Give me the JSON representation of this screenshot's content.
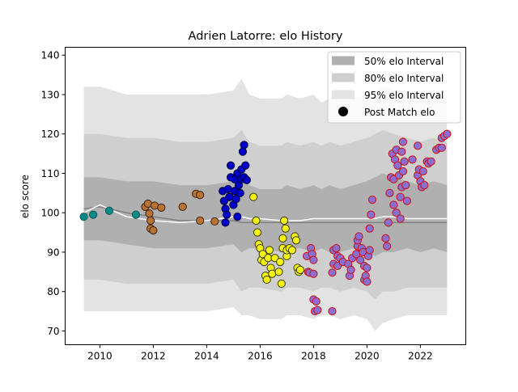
{
  "chart_data": {
    "type": "scatter",
    "title": "Adrien Latorre: elo History",
    "xlabel": "",
    "ylabel": "elo score",
    "xlim": [
      2008.7,
      2023.7
    ],
    "ylim": [
      66.5,
      142
    ],
    "x_ticks": [
      2010,
      2012,
      2014,
      2016,
      2018,
      2020,
      2022
    ],
    "y_ticks": [
      70,
      80,
      90,
      100,
      110,
      120,
      130,
      140
    ],
    "grid": false,
    "legend": {
      "placement": "top-right",
      "entries": [
        "50% elo Interval",
        "80% elo Interval",
        "95% elo Interval",
        "Post Match elo"
      ]
    },
    "colors": {
      "band50": "#b0b0b0",
      "band80": "#cfcfcf",
      "band95": "#e3e3e3",
      "median_line": "#808080",
      "mean_line": "#ffffff"
    },
    "bands": {
      "x": [
        2009.4,
        2010.0,
        2011.0,
        2012.0,
        2013.0,
        2014.0,
        2015.0,
        2015.3,
        2015.6,
        2016.0,
        2016.8,
        2017.0,
        2017.5,
        2018.0,
        2018.3,
        2018.6,
        2019.0,
        2019.5,
        2020.0,
        2020.3,
        2020.6,
        2021.0,
        2021.5,
        2022.0,
        2022.5,
        2023.0
      ],
      "u95": [
        132,
        132,
        130,
        130,
        130,
        130,
        131,
        134,
        130,
        129,
        129,
        130,
        129,
        130,
        128,
        129,
        129,
        129,
        130,
        131,
        132,
        131,
        130,
        129,
        130,
        129
      ],
      "u80": [
        120,
        120,
        119,
        119,
        118,
        118,
        119,
        121,
        118,
        117,
        117,
        118,
        117,
        118,
        117,
        118,
        117,
        118,
        119,
        120,
        121,
        120,
        119,
        118,
        119,
        118
      ],
      "u50": [
        109,
        109,
        108,
        108,
        107,
        107,
        108,
        109,
        107,
        106,
        106,
        107,
        106,
        107,
        106,
        107,
        106,
        107,
        108,
        109,
        110,
        109,
        108,
        107,
        108,
        107
      ],
      "l50": [
        93,
        93,
        92,
        91,
        91,
        91,
        92,
        90,
        91,
        91,
        90,
        91,
        91,
        90,
        91,
        90,
        90,
        91,
        90,
        89,
        90,
        90,
        91,
        90,
        91,
        90
      ],
      "l80": [
        83,
        83,
        82,
        82,
        82,
        82,
        83,
        80,
        81,
        81,
        80,
        81,
        81,
        80,
        81,
        81,
        80,
        81,
        80,
        78,
        80,
        80,
        81,
        81,
        81,
        81
      ],
      "l95": [
        75,
        75,
        75,
        75,
        75,
        75,
        76,
        74,
        74,
        73,
        73,
        74,
        74,
        73,
        74,
        74,
        73,
        74,
        73,
        70,
        72,
        73,
        74,
        74,
        74,
        74
      ],
      "median": [
        101,
        101.5,
        100,
        99,
        98,
        98,
        98,
        97.5,
        97.5,
        97.5,
        97.5,
        97.5,
        97.5,
        97.5,
        97.5,
        97.5,
        97.5,
        97.5,
        97.5,
        97.5,
        97.5,
        97.5,
        97.5,
        97.5,
        97.5,
        97.5
      ],
      "mean": [
        100,
        102,
        99,
        98,
        97.5,
        98,
        99,
        99,
        98.5,
        98.5,
        98,
        98,
        98,
        98.5,
        98.5,
        98.5,
        98.5,
        98.5,
        98.5,
        98.5,
        99,
        99,
        98.5,
        98.5,
        98.5,
        98.5
      ]
    },
    "series": [
      {
        "fill": "#008b8b",
        "edge": "#1a5555",
        "points": [
          [
            2009.4,
            99
          ],
          [
            2009.75,
            99.5
          ],
          [
            2010.35,
            100.5
          ],
          [
            2011.35,
            99.5
          ]
        ]
      },
      {
        "fill": "#b87333",
        "edge": "#3a2010",
        "points": [
          [
            2011.7,
            101.5
          ],
          [
            2011.8,
            102.3
          ],
          [
            2011.85,
            99.8
          ],
          [
            2011.9,
            98
          ],
          [
            2011.9,
            96
          ],
          [
            2012.0,
            95.5
          ],
          [
            2012.05,
            101.8
          ],
          [
            2012.3,
            101.3
          ],
          [
            2013.1,
            101.5
          ],
          [
            2013.6,
            104.8
          ],
          [
            2013.75,
            104.5
          ],
          [
            2013.75,
            98
          ],
          [
            2014.3,
            97.8
          ]
        ]
      },
      {
        "fill": "#0000cc",
        "edge": "#00003a",
        "points": [
          [
            2014.6,
            105.5
          ],
          [
            2014.65,
            103
          ],
          [
            2014.7,
            101
          ],
          [
            2014.7,
            97.5
          ],
          [
            2014.75,
            99.5
          ],
          [
            2014.8,
            106
          ],
          [
            2014.85,
            104
          ],
          [
            2014.9,
            109
          ],
          [
            2014.9,
            112
          ],
          [
            2015.0,
            102
          ],
          [
            2015.05,
            108.5
          ],
          [
            2015.05,
            105.5
          ],
          [
            2015.1,
            103.5
          ],
          [
            2015.15,
            110
          ],
          [
            2015.15,
            99
          ],
          [
            2015.2,
            107
          ],
          [
            2015.25,
            105
          ],
          [
            2015.3,
            111
          ],
          [
            2015.3,
            108.5
          ],
          [
            2015.35,
            115.5
          ],
          [
            2015.4,
            117.2
          ],
          [
            2015.4,
            109
          ],
          [
            2015.45,
            112
          ],
          [
            2015.5,
            108.3
          ]
        ]
      },
      {
        "fill": "#f5f510",
        "edge": "#3a3a00",
        "points": [
          [
            2015.75,
            104
          ],
          [
            2015.85,
            98
          ],
          [
            2015.9,
            95
          ],
          [
            2015.95,
            92
          ],
          [
            2016.0,
            91
          ],
          [
            2016.05,
            88
          ],
          [
            2016.1,
            89.5
          ],
          [
            2016.15,
            87.5
          ],
          [
            2016.2,
            84
          ],
          [
            2016.25,
            83
          ],
          [
            2016.3,
            88.5
          ],
          [
            2016.35,
            90.5
          ],
          [
            2016.4,
            86
          ],
          [
            2016.45,
            84.5
          ],
          [
            2016.55,
            88.5
          ],
          [
            2016.7,
            85
          ],
          [
            2016.75,
            87.5
          ],
          [
            2016.8,
            82
          ],
          [
            2016.85,
            91
          ],
          [
            2016.85,
            93.5
          ],
          [
            2016.9,
            98
          ],
          [
            2016.95,
            96
          ],
          [
            2017.0,
            89
          ],
          [
            2017.0,
            90.5
          ],
          [
            2017.1,
            91
          ],
          [
            2017.2,
            90.5
          ],
          [
            2017.3,
            94
          ],
          [
            2017.35,
            93
          ],
          [
            2017.4,
            86
          ],
          [
            2017.45,
            85
          ],
          [
            2017.5,
            85.5
          ]
        ]
      },
      {
        "fill": "#8a6fd1",
        "edge": "#cc1010",
        "points": [
          [
            2017.75,
            89
          ],
          [
            2017.8,
            85
          ],
          [
            2017.85,
            84.8
          ],
          [
            2017.9,
            91
          ],
          [
            2017.95,
            89.5
          ],
          [
            2018.0,
            88
          ],
          [
            2018.0,
            84.5
          ],
          [
            2018.0,
            78
          ],
          [
            2018.05,
            75
          ],
          [
            2018.1,
            77.5
          ],
          [
            2018.15,
            75.3
          ],
          [
            2018.7,
            75
          ],
          [
            2018.7,
            84.8
          ],
          [
            2018.75,
            90.5
          ],
          [
            2018.75,
            87
          ],
          [
            2018.85,
            91
          ],
          [
            2018.9,
            89
          ],
          [
            2018.9,
            86.5
          ],
          [
            2019.0,
            88.5
          ],
          [
            2019.1,
            87.5
          ],
          [
            2019.3,
            87
          ],
          [
            2019.35,
            84
          ],
          [
            2019.4,
            85.5
          ],
          [
            2019.45,
            88.5
          ],
          [
            2019.6,
            89.5
          ],
          [
            2019.65,
            91.5
          ],
          [
            2019.65,
            93
          ],
          [
            2019.7,
            94
          ],
          [
            2019.75,
            88
          ],
          [
            2019.8,
            91
          ],
          [
            2019.85,
            90
          ],
          [
            2019.9,
            86.5
          ],
          [
            2019.9,
            83
          ],
          [
            2019.95,
            84
          ],
          [
            2020.0,
            82.5
          ],
          [
            2020.0,
            86
          ],
          [
            2020.05,
            89
          ],
          [
            2020.1,
            90.5
          ],
          [
            2020.1,
            96
          ],
          [
            2020.15,
            99.5
          ],
          [
            2020.2,
            103.3
          ],
          [
            2020.7,
            93.5
          ],
          [
            2020.75,
            91.5
          ],
          [
            2020.8,
            97.5
          ],
          [
            2020.85,
            105
          ],
          [
            2020.9,
            109
          ],
          [
            2020.95,
            115
          ],
          [
            2021.0,
            108.5
          ],
          [
            2021.0,
            102
          ],
          [
            2021.05,
            113.5
          ],
          [
            2021.1,
            116
          ],
          [
            2021.1,
            100
          ],
          [
            2021.15,
            112
          ],
          [
            2021.2,
            109.5
          ],
          [
            2021.25,
            104
          ],
          [
            2021.25,
            98.5
          ],
          [
            2021.3,
            115.5
          ],
          [
            2021.3,
            106.5
          ],
          [
            2021.35,
            118
          ],
          [
            2021.35,
            110.5
          ],
          [
            2021.4,
            113
          ],
          [
            2021.45,
            107
          ],
          [
            2021.5,
            103
          ],
          [
            2021.7,
            113.5
          ],
          [
            2021.9,
            109.5
          ],
          [
            2021.9,
            117
          ],
          [
            2021.95,
            111
          ],
          [
            2022.0,
            108
          ],
          [
            2022.05,
            106.5
          ],
          [
            2022.1,
            110.5
          ],
          [
            2022.15,
            107
          ],
          [
            2022.25,
            113
          ],
          [
            2022.3,
            112.5
          ],
          [
            2022.4,
            113
          ],
          [
            2022.6,
            116
          ],
          [
            2022.7,
            116.5
          ],
          [
            2022.8,
            119
          ],
          [
            2022.8,
            116.5
          ],
          [
            2022.9,
            119.5
          ],
          [
            2023.0,
            120
          ]
        ]
      }
    ]
  }
}
